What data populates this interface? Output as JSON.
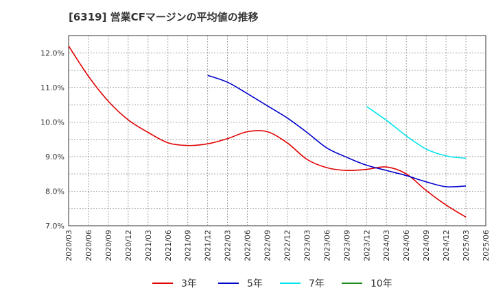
{
  "chart_data": {
    "type": "line",
    "title": "[6319]  営業CFマージンの平均値の推移",
    "xlabel": "",
    "ylabel": "",
    "x_ticks": [
      "2020/03",
      "2020/06",
      "2020/09",
      "2020/12",
      "2021/03",
      "2021/06",
      "2021/09",
      "2021/12",
      "2022/03",
      "2022/06",
      "2022/09",
      "2022/12",
      "2023/03",
      "2023/06",
      "2023/09",
      "2023/12",
      "2024/03",
      "2024/06",
      "2024/09",
      "2024/12",
      "2025/03",
      "2025/06"
    ],
    "y_ticks": [
      "7.0%",
      "8.0%",
      "9.0%",
      "10.0%",
      "11.0%",
      "12.0%"
    ],
    "ylim": [
      7.0,
      12.5
    ],
    "grid": true,
    "legend_position": "bottom",
    "series": [
      {
        "name": "3年",
        "color": "#e00000",
        "x": [
          "2020/03",
          "2020/06",
          "2020/09",
          "2020/12",
          "2021/03",
          "2021/06",
          "2021/09",
          "2021/12",
          "2022/03",
          "2022/06",
          "2022/09",
          "2022/12",
          "2023/03",
          "2023/06",
          "2023/09",
          "2023/12",
          "2024/03",
          "2024/06",
          "2024/09",
          "2024/12",
          "2025/03"
        ],
        "values": [
          12.2,
          11.32,
          10.6,
          10.06,
          9.7,
          9.4,
          9.32,
          9.37,
          9.52,
          9.72,
          9.72,
          9.4,
          8.92,
          8.68,
          8.6,
          8.63,
          8.7,
          8.5,
          8.02,
          7.6,
          7.25
        ]
      },
      {
        "name": "5年",
        "color": "#0000cc",
        "x": [
          "2021/12",
          "2022/03",
          "2022/06",
          "2022/09",
          "2022/12",
          "2023/03",
          "2023/06",
          "2023/09",
          "2023/12",
          "2024/03",
          "2024/06",
          "2024/09",
          "2024/12",
          "2025/03"
        ],
        "values": [
          11.35,
          11.15,
          10.82,
          10.47,
          10.12,
          9.7,
          9.25,
          8.98,
          8.75,
          8.6,
          8.45,
          8.27,
          8.13,
          8.15
        ]
      },
      {
        "name": "7年",
        "color": "#00e5ee",
        "x": [
          "2023/12",
          "2024/03",
          "2024/06",
          "2024/09",
          "2024/12",
          "2025/03"
        ],
        "values": [
          10.45,
          10.05,
          9.6,
          9.22,
          9.02,
          8.95
        ]
      },
      {
        "name": "10年",
        "color": "#228b22",
        "x": [],
        "values": []
      }
    ]
  }
}
